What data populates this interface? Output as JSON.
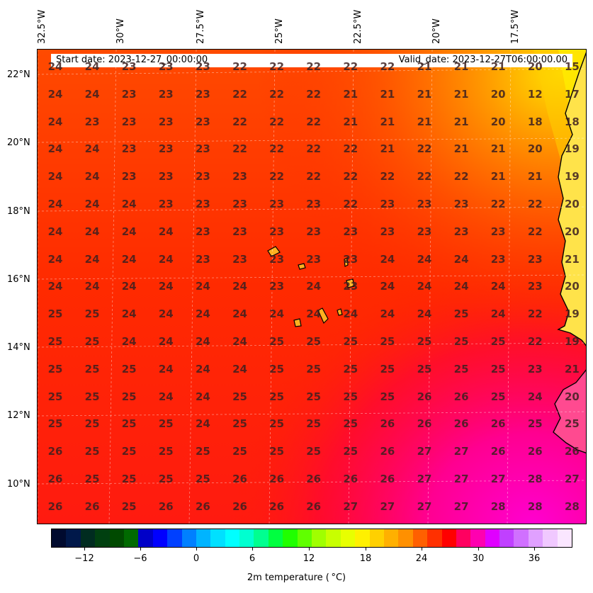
{
  "map": {
    "start_date": "Start date: 2023-12-27_00:00:00",
    "valid_date": "Valid_date: 2023-12-27T06:00:00.00",
    "lon_labels": [
      "32.5°W",
      "30°W",
      "27.5°W",
      "25°W",
      "22.5°W",
      "20°W",
      "17.5°W"
    ],
    "lat_labels": [
      "22°N",
      "20°N",
      "18°N",
      "16°N",
      "14°N",
      "12°N",
      "10°N"
    ],
    "grid_values": [
      [
        "24",
        "24",
        "23",
        "23",
        "23",
        "22",
        "22",
        "22",
        "22",
        "22",
        "21",
        "21",
        "21",
        "20",
        "15"
      ],
      [
        "24",
        "24",
        "23",
        "23",
        "23",
        "22",
        "22",
        "22",
        "21",
        "21",
        "21",
        "21",
        "20",
        "12",
        "17"
      ],
      [
        "24",
        "23",
        "23",
        "23",
        "23",
        "22",
        "22",
        "22",
        "21",
        "21",
        "21",
        "21",
        "20",
        "18",
        "18"
      ],
      [
        "24",
        "24",
        "23",
        "23",
        "23",
        "22",
        "22",
        "22",
        "22",
        "21",
        "22",
        "21",
        "21",
        "20",
        "19"
      ],
      [
        "24",
        "24",
        "23",
        "23",
        "23",
        "23",
        "22",
        "22",
        "22",
        "22",
        "22",
        "22",
        "21",
        "21",
        "19"
      ],
      [
        "24",
        "24",
        "24",
        "23",
        "23",
        "23",
        "23",
        "23",
        "22",
        "23",
        "23",
        "23",
        "22",
        "22",
        "20"
      ],
      [
        "24",
        "24",
        "24",
        "24",
        "23",
        "23",
        "23",
        "23",
        "23",
        "23",
        "23",
        "23",
        "23",
        "22",
        "20"
      ],
      [
        "24",
        "24",
        "24",
        "24",
        "23",
        "23",
        "23",
        "23",
        "23",
        "24",
        "24",
        "24",
        "23",
        "23",
        "21"
      ],
      [
        "24",
        "24",
        "24",
        "24",
        "24",
        "24",
        "23",
        "24",
        "23",
        "24",
        "24",
        "24",
        "24",
        "23",
        "20"
      ],
      [
        "25",
        "25",
        "24",
        "24",
        "24",
        "24",
        "24",
        "24",
        "24",
        "24",
        "24",
        "25",
        "24",
        "22",
        "19"
      ],
      [
        "25",
        "25",
        "24",
        "24",
        "24",
        "24",
        "25",
        "25",
        "25",
        "25",
        "25",
        "25",
        "25",
        "22",
        "19"
      ],
      [
        "25",
        "25",
        "25",
        "24",
        "24",
        "24",
        "25",
        "25",
        "25",
        "25",
        "25",
        "25",
        "25",
        "23",
        "21"
      ],
      [
        "25",
        "25",
        "25",
        "24",
        "24",
        "25",
        "25",
        "25",
        "25",
        "25",
        "26",
        "26",
        "25",
        "24",
        "20"
      ],
      [
        "25",
        "25",
        "25",
        "25",
        "24",
        "25",
        "25",
        "25",
        "25",
        "26",
        "26",
        "26",
        "26",
        "25",
        "25"
      ],
      [
        "26",
        "25",
        "25",
        "25",
        "25",
        "25",
        "25",
        "25",
        "25",
        "26",
        "27",
        "27",
        "26",
        "26",
        "26"
      ],
      [
        "26",
        "25",
        "25",
        "25",
        "25",
        "26",
        "26",
        "26",
        "26",
        "26",
        "27",
        "27",
        "27",
        "28",
        "27"
      ],
      [
        "26",
        "26",
        "25",
        "26",
        "26",
        "26",
        "26",
        "26",
        "27",
        "27",
        "27",
        "27",
        "28",
        "28",
        "28"
      ]
    ],
    "colors": {
      "ocean_main": "#ff2a00",
      "north_east": "#ff7a00",
      "south_east": "#ff00c8",
      "coast": "#ffe000",
      "island": "#ffb020"
    }
  },
  "colorbar": {
    "tick_labels": [
      "−12",
      "−6",
      "0",
      "6",
      "12",
      "18",
      "24",
      "30",
      "36"
    ],
    "title": "2m temperature ($^\\circ$C)"
  }
}
